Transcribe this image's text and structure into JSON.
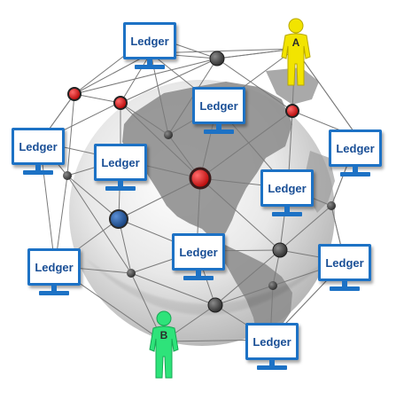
{
  "ledger_label": "Ledger",
  "persons": {
    "a": {
      "label": "A",
      "color": "#f2e400",
      "stroke": "#b8a800"
    },
    "b": {
      "label": "B",
      "color": "#2ee37a",
      "stroke": "#17a854"
    }
  },
  "colors": {
    "ledger_border": "#1d72c5",
    "ledger_text": "#1a4f96",
    "node_gray": "#3d3d3d",
    "node_red": "#d41212",
    "node_blue": "#1f5ba8",
    "link": "#7a7a7a",
    "globe_land": "#8f8f8f",
    "globe_ocean": "#d9d9d9"
  }
}
